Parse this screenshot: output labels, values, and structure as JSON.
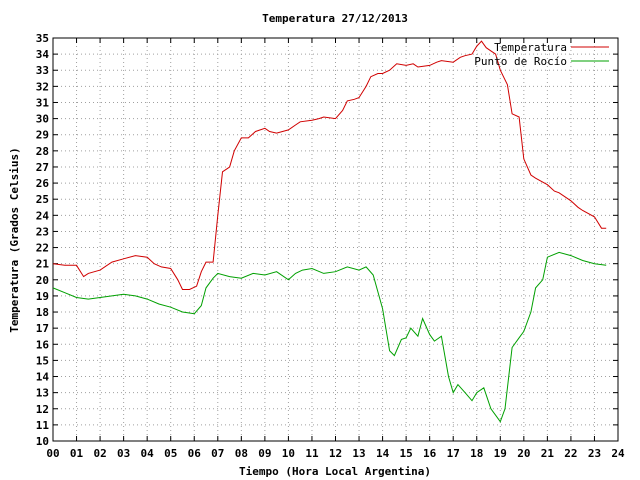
{
  "chart_data": {
    "type": "line",
    "title": "Temperatura 27/12/2013",
    "xlabel": "Tiempo (Hora Local Argentina)",
    "ylabel": "Temperatura (Grados Celsius)",
    "xlim": [
      0,
      24
    ],
    "ylim": [
      10,
      35
    ],
    "x_ticks": [
      "00",
      "01",
      "02",
      "03",
      "04",
      "05",
      "06",
      "07",
      "08",
      "09",
      "10",
      "11",
      "12",
      "13",
      "14",
      "15",
      "16",
      "17",
      "18",
      "19",
      "20",
      "21",
      "22",
      "23",
      "24"
    ],
    "y_ticks": [
      10,
      11,
      12,
      13,
      14,
      15,
      16,
      17,
      18,
      19,
      20,
      21,
      22,
      23,
      24,
      25,
      26,
      27,
      28,
      29,
      30,
      31,
      32,
      33,
      34,
      35
    ],
    "grid": true,
    "legend_position": "top-right",
    "series": [
      {
        "name": "Temperatura",
        "color": "#d00000",
        "x": [
          0,
          0.5,
          1.0,
          1.3,
          1.5,
          2.0,
          2.5,
          3.0,
          3.5,
          4.0,
          4.3,
          4.6,
          5.0,
          5.3,
          5.5,
          5.8,
          6.1,
          6.3,
          6.5,
          6.8,
          7.0,
          7.2,
          7.5,
          7.7,
          8.0,
          8.3,
          8.6,
          9.0,
          9.2,
          9.5,
          10.0,
          10.3,
          10.5,
          11.0,
          11.3,
          11.5,
          12.0,
          12.3,
          12.5,
          12.8,
          13.0,
          13.3,
          13.5,
          13.8,
          14.0,
          14.3,
          14.6,
          15.0,
          15.3,
          15.5,
          16.0,
          16.3,
          16.5,
          17.0,
          17.3,
          17.5,
          17.8,
          18.0,
          18.2,
          18.4,
          18.6,
          18.8,
          19.0,
          19.3,
          19.5,
          19.8,
          20.0,
          20.3,
          20.5,
          21.0,
          21.3,
          21.5,
          22.0,
          22.3,
          22.5,
          23.0,
          23.3,
          23.5
        ],
        "y": [
          21.0,
          20.9,
          20.9,
          20.2,
          20.4,
          20.6,
          21.1,
          21.3,
          21.5,
          21.4,
          21.0,
          20.8,
          20.7,
          20.0,
          19.4,
          19.4,
          19.6,
          20.5,
          21.1,
          21.1,
          24.0,
          26.7,
          27.0,
          28.0,
          28.8,
          28.8,
          29.2,
          29.4,
          29.2,
          29.1,
          29.3,
          29.6,
          29.8,
          29.9,
          30.0,
          30.1,
          30.0,
          30.5,
          31.1,
          31.2,
          31.3,
          32.0,
          32.6,
          32.8,
          32.8,
          33.0,
          33.4,
          33.3,
          33.4,
          33.2,
          33.3,
          33.5,
          33.6,
          33.5,
          33.8,
          33.9,
          34.0,
          34.5,
          34.8,
          34.4,
          34.2,
          34.0,
          33.0,
          32.1,
          30.3,
          30.1,
          27.5,
          26.5,
          26.3,
          25.9,
          25.5,
          25.4,
          24.9,
          24.5,
          24.3,
          23.9,
          23.2,
          23.2
        ]
      },
      {
        "name": "Punto de Rocío",
        "color": "#00a000",
        "x": [
          0,
          0.5,
          1.0,
          1.5,
          2.0,
          2.5,
          3.0,
          3.5,
          4.0,
          4.5,
          5.0,
          5.5,
          6.0,
          6.3,
          6.5,
          6.8,
          7.0,
          7.5,
          8.0,
          8.5,
          9.0,
          9.5,
          10.0,
          10.3,
          10.6,
          11.0,
          11.5,
          12.0,
          12.5,
          13.0,
          13.3,
          13.6,
          14.0,
          14.3,
          14.5,
          14.8,
          15.0,
          15.2,
          15.5,
          15.7,
          16.0,
          16.2,
          16.5,
          16.8,
          17.0,
          17.2,
          17.5,
          17.8,
          18.0,
          18.3,
          18.6,
          18.8,
          19.0,
          19.2,
          19.5,
          19.8,
          20.0,
          20.3,
          20.5,
          20.8,
          21.0,
          21.5,
          22.0,
          22.5,
          23.0,
          23.5
        ],
        "y": [
          19.5,
          19.2,
          18.9,
          18.8,
          18.9,
          19.0,
          19.1,
          19.0,
          18.8,
          18.5,
          18.3,
          18.0,
          17.9,
          18.4,
          19.5,
          20.1,
          20.4,
          20.2,
          20.1,
          20.4,
          20.3,
          20.5,
          20.0,
          20.4,
          20.6,
          20.7,
          20.4,
          20.5,
          20.8,
          20.6,
          20.8,
          20.3,
          18.2,
          15.6,
          15.3,
          16.3,
          16.4,
          17.0,
          16.5,
          17.6,
          16.6,
          16.2,
          16.5,
          14.0,
          13.0,
          13.5,
          13.0,
          12.5,
          13.0,
          13.3,
          12.0,
          11.6,
          11.2,
          12.0,
          15.8,
          16.4,
          16.8,
          18.0,
          19.5,
          20.0,
          21.4,
          21.7,
          21.5,
          21.2,
          21.0,
          20.9
        ]
      }
    ]
  }
}
